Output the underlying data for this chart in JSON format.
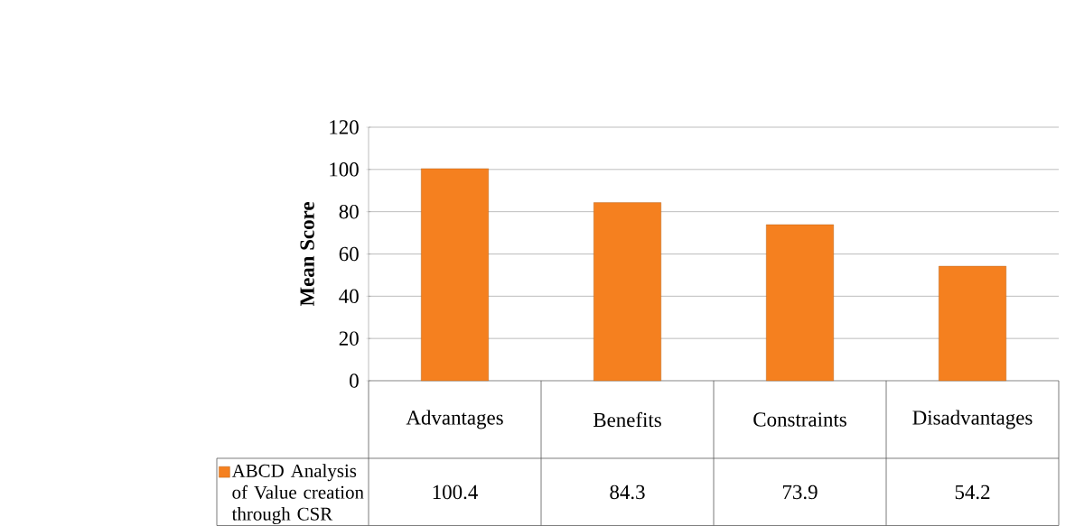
{
  "chart_data": {
    "type": "bar",
    "ylabel": "Mean Score",
    "categories": [
      "Advantages",
      "Benefits",
      "Constraints",
      "Disadvantages"
    ],
    "series": [
      {
        "name": "ABCD Analysis of Value creation through CSR",
        "color": "#f5801f",
        "values": [
          100.4,
          84.3,
          73.9,
          54.2
        ]
      }
    ],
    "ylim": [
      0,
      120
    ],
    "yticks": [
      0,
      20,
      40,
      60,
      80,
      100,
      120
    ],
    "grid": "y",
    "data_labels": true,
    "legend": "bottom left"
  }
}
